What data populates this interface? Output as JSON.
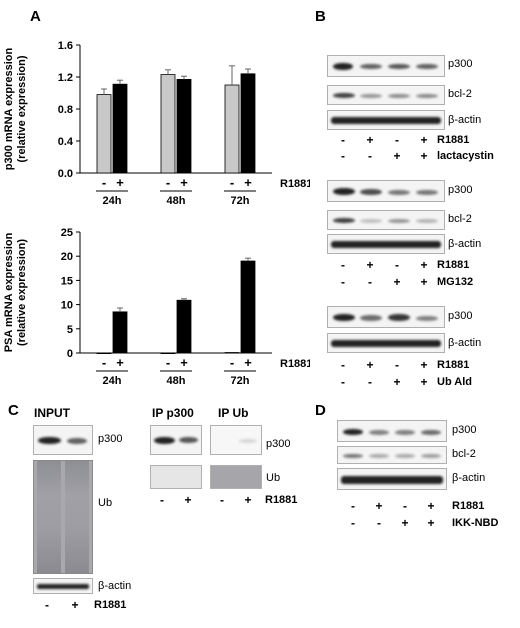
{
  "panels": {
    "A": "A",
    "B": "B",
    "C": "C",
    "D": "D"
  },
  "chartA1": {
    "chart_data": {
      "type": "bar",
      "ylabel": "p300 mRNA expression\n(relative expression)",
      "ylim": [
        0,
        1.6
      ],
      "yticks": [
        "0.0",
        "0.4",
        "0.8",
        "1.2",
        "1.6"
      ],
      "groups": [
        "24h",
        "48h",
        "72h"
      ],
      "signs": [
        "-",
        "+"
      ],
      "treatment": "R1881",
      "series": [
        {
          "values": [
            0.98,
            1.23,
            1.1
          ],
          "errors": [
            0.07,
            0.06,
            0.24
          ],
          "color": "#c8c8c8"
        },
        {
          "values": [
            1.11,
            1.17,
            1.24
          ],
          "errors": [
            0.05,
            0.04,
            0.06
          ],
          "color": "#000000"
        }
      ]
    }
  },
  "chartA2": {
    "chart_data": {
      "type": "bar",
      "ylabel": "PSA mRNA expression\n(relative expression)",
      "ylim": [
        0,
        25
      ],
      "yticks": [
        "0",
        "5",
        "10",
        "15",
        "20",
        "25"
      ],
      "groups": [
        "24h",
        "48h",
        "72h"
      ],
      "signs": [
        "-",
        "+"
      ],
      "treatment": "R1881",
      "series": [
        {
          "values": [
            0.0,
            0.0,
            0.1
          ],
          "errors": [
            0,
            0,
            0
          ],
          "color": "#c8c8c8"
        },
        {
          "values": [
            8.5,
            10.9,
            19.0
          ],
          "errors": [
            0.8,
            0.3,
            0.6
          ],
          "color": "#000000"
        }
      ]
    }
  },
  "B": {
    "block1": {
      "rows": [
        "p300",
        "bcl-2",
        "β-actin"
      ],
      "cond": [
        {
          "label": "R1881",
          "signs": [
            "-",
            "+",
            "-",
            "+"
          ]
        },
        {
          "label": "lactacystin",
          "signs": [
            "-",
            "-",
            "+",
            "+"
          ]
        }
      ]
    },
    "block2": {
      "rows": [
        "p300",
        "bcl-2",
        "β-actin"
      ],
      "cond": [
        {
          "label": "R1881",
          "signs": [
            "-",
            "+",
            "-",
            "+"
          ]
        },
        {
          "label": "MG132",
          "signs": [
            "-",
            "-",
            "+",
            "+"
          ]
        }
      ]
    },
    "block3": {
      "rows": [
        "p300",
        "β-actin"
      ],
      "cond": [
        {
          "label": "R1881",
          "signs": [
            "-",
            "+",
            "-",
            "+"
          ]
        },
        {
          "label": "Ub Ald",
          "signs": [
            "-",
            "-",
            "+",
            "+"
          ]
        }
      ]
    }
  },
  "C": {
    "input_title": "INPUT",
    "ip_p300_title": "IP p300",
    "ip_ub_title": "IP Ub",
    "input_rows": [
      "p300",
      "Ub",
      "β-actin"
    ],
    "ip_rows": [
      "p300",
      "Ub"
    ],
    "treatment": "R1881",
    "signs": [
      "-",
      "+"
    ]
  },
  "D": {
    "rows": [
      "p300",
      "bcl-2",
      "β-actin"
    ],
    "cond": [
      {
        "label": "R1881",
        "signs": [
          "-",
          "+",
          "-",
          "+"
        ]
      },
      {
        "label": "IKK-NBD",
        "signs": [
          "-",
          "-",
          "+",
          "+"
        ]
      }
    ]
  }
}
